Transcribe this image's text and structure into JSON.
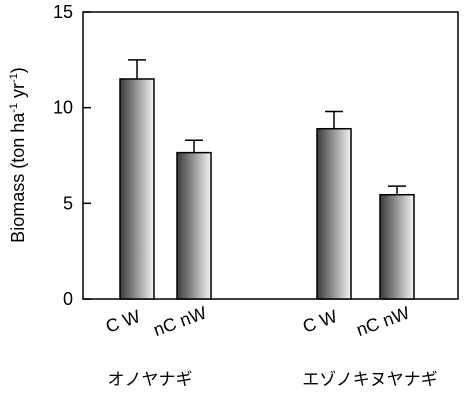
{
  "chart_data": {
    "type": "bar",
    "ylabel": {
      "prefix": "Biomass (ton ha",
      "sup1": "-1",
      "middle": " yr",
      "sup2": "-1",
      "suffix": ")"
    },
    "ylim": [
      0,
      15
    ],
    "yticks": [
      0,
      5,
      10,
      15
    ],
    "grid": false,
    "groups": [
      {
        "name": "オノヤナギ",
        "bars": [
          {
            "category": "C W",
            "value": 11.5,
            "error": 1.0
          },
          {
            "category": "nC nW",
            "value": 7.65,
            "error": 0.65
          }
        ]
      },
      {
        "name": "エゾノキヌヤナギ",
        "bars": [
          {
            "category": "C W",
            "value": 8.9,
            "error": 0.9
          },
          {
            "category": "nC nW",
            "value": 5.45,
            "error": 0.45
          }
        ]
      }
    ],
    "bar_fill": {
      "dark": "#3a3a3a",
      "light": "#f4f4f4"
    }
  }
}
